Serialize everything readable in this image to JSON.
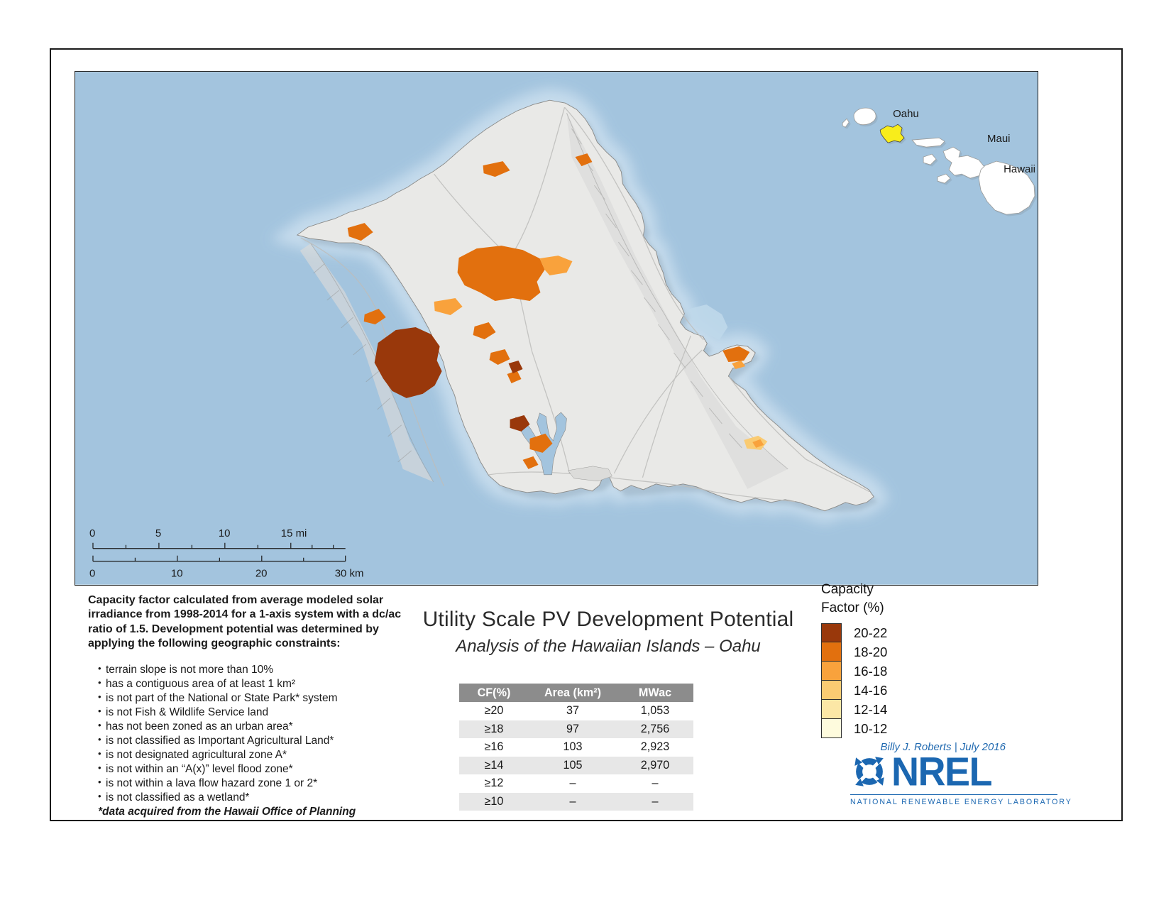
{
  "map": {
    "ocean_color": "#A3C4DE",
    "halo_color": "#C9DEEE",
    "island_color": "#E9E9E7",
    "inset_labels": {
      "oahu": "Oahu",
      "maui": "Maui",
      "hawaii": "Hawaii"
    },
    "scale": {
      "mi_labels": [
        "0",
        "5",
        "10",
        "15 mi"
      ],
      "km_labels": [
        "0",
        "10",
        "20",
        "30 km"
      ]
    }
  },
  "notes": {
    "intro": "Capacity factor calculated from average modeled solar irradiance from 1998-2014 for a 1-axis system with a dc/ac ratio of 1.5.  Development potential was determined by applying the following geographic constraints:",
    "bullets": [
      "terrain slope is not more than 10%",
      "has a contiguous area of at least 1 km²",
      "is not part of the National or State Park* system",
      "is not Fish & Wildlife Service land",
      "has not been zoned as an urban area*",
      "is not classified as Important Agricultural Land*",
      "is not designated agricultural zone A*",
      "is not within an “A(x)” level flood zone*",
      "is not within a lava flow hazard zone 1 or 2*",
      "is not classified as a wetland*"
    ],
    "footnote": "*data acquired from the Hawaii Office of Planning"
  },
  "title": {
    "main": "Utility Scale PV Development Potential",
    "subtitle": "Analysis of the Hawaiian Islands – Oahu"
  },
  "table": {
    "headers": [
      "CF(%)",
      "Area (km²)",
      "MWac"
    ],
    "rows": [
      [
        "≥20",
        "37",
        "1,053"
      ],
      [
        "≥18",
        "97",
        "2,756"
      ],
      [
        "≥16",
        "103",
        "2,923"
      ],
      [
        "≥14",
        "105",
        "2,970"
      ],
      [
        "≥12",
        "–",
        "–"
      ],
      [
        "≥10",
        "–",
        "–"
      ]
    ]
  },
  "legend": {
    "title_line1": "Capacity",
    "title_line2": "Factor (%)",
    "items": [
      {
        "label": "20-22",
        "color": "#99380B"
      },
      {
        "label": "18-20",
        "color": "#E2700E"
      },
      {
        "label": "16-18",
        "color": "#F9A23C"
      },
      {
        "label": "14-16",
        "color": "#FACB72"
      },
      {
        "label": "12-14",
        "color": "#FCE7A6"
      },
      {
        "label": "10-12",
        "color": "#FEFBDD"
      }
    ]
  },
  "credit": "Billy J. Roberts | July 2016",
  "logo": {
    "name": "NREL",
    "caption": "NATIONAL RENEWABLE ENERGY LABORATORY",
    "color": "#1B67B1"
  }
}
